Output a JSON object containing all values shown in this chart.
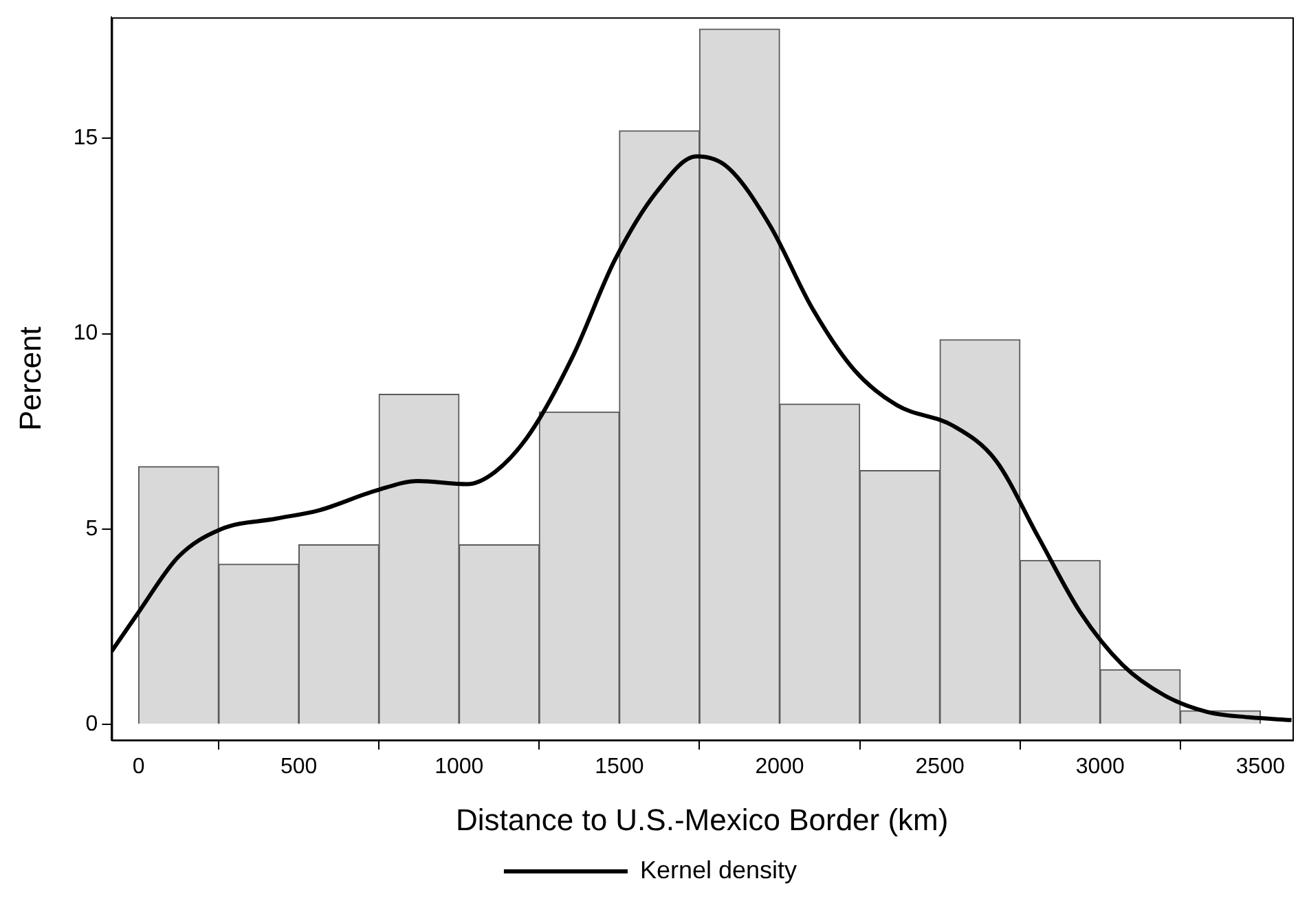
{
  "chart_data": {
    "type": "histogram",
    "xlabel": "Distance to U.S.-Mexico Border (km)",
    "ylabel": "Percent",
    "bins": [
      0,
      250,
      500,
      750,
      1000,
      1250,
      1500,
      1750,
      2000,
      2250,
      2500,
      2750,
      3000,
      3250,
      3500
    ],
    "values": [
      6.6,
      4.1,
      4.6,
      8.45,
      4.6,
      8.0,
      15.2,
      17.8,
      8.2,
      6.5,
      9.85,
      4.2,
      1.4,
      0.35
    ],
    "color": "#d9d9d9",
    "series": [
      {
        "name": "Kernel density",
        "type": "line",
        "color": "#000000",
        "x": [
          -84,
          0,
          123,
          255,
          431,
          563,
          739,
          871,
          1025,
          1113,
          1222,
          1354,
          1486,
          1618,
          1741,
          1838,
          1970,
          2102,
          2234,
          2366,
          2542,
          2674,
          2806,
          2938,
          3070,
          3201,
          3333,
          3465,
          3597
        ],
        "values": [
          1.87,
          2.87,
          4.28,
          4.99,
          5.27,
          5.48,
          5.98,
          6.23,
          6.15,
          6.47,
          7.46,
          9.41,
          11.89,
          13.65,
          14.54,
          14.26,
          12.77,
          10.65,
          9.06,
          8.17,
          7.64,
          6.76,
          4.81,
          2.87,
          1.52,
          0.74,
          0.32,
          0.18,
          0.11
        ]
      }
    ],
    "xlim": [
      -84,
      3600
    ],
    "xticks": [
      0,
      500,
      1000,
      1500,
      2000,
      2500,
      3000,
      3500
    ],
    "ylim": [
      -0.4,
      18.1
    ],
    "yticks": [
      0,
      5,
      10,
      15
    ],
    "grid": false,
    "legend": "bottom",
    "marker": "none",
    "line_style": "solid"
  }
}
